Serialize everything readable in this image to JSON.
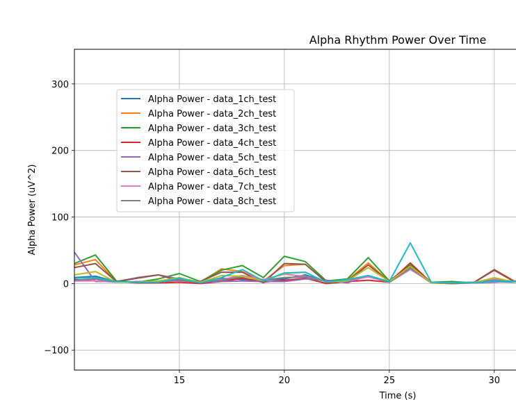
{
  "chart_data": {
    "type": "line",
    "title": "Alpha Rhythm Power Over Time",
    "xlabel": "Time (s)",
    "ylabel": "Alpha Power (uV^2)",
    "xlim": [
      10,
      31.2
    ],
    "ylim": [
      -130,
      352
    ],
    "xticks": [
      15,
      20,
      25,
      30
    ],
    "yticks": [
      -100,
      0,
      100,
      200,
      300
    ],
    "grid": true,
    "legend_position": "upper-left",
    "x": [
      10,
      11,
      12,
      13,
      14,
      15,
      16,
      17,
      18,
      19,
      20,
      21,
      22,
      23,
      24,
      25,
      26,
      27,
      28,
      29,
      30,
      31,
      32
    ],
    "series": [
      {
        "name": "Alpha Power - data_1ch_test",
        "color": "#1f77b4",
        "values": [
          9,
          11,
          3,
          2,
          4,
          6,
          3,
          8,
          6,
          5,
          7,
          13,
          3,
          4,
          11,
          2,
          25,
          2,
          2,
          1,
          3,
          2,
          2
        ]
      },
      {
        "name": "Alpha Power - data_2ch_test",
        "color": "#ff7f0e",
        "values": [
          28,
          36,
          3,
          1,
          3,
          8,
          2,
          22,
          18,
          4,
          27,
          29,
          2,
          5,
          31,
          3,
          28,
          1,
          1,
          1,
          21,
          3,
          3
        ]
      },
      {
        "name": "Alpha Power - data_3ch_test",
        "color": "#2ca02c",
        "values": [
          30,
          43,
          4,
          2,
          7,
          15,
          3,
          20,
          27,
          9,
          41,
          33,
          4,
          7,
          39,
          4,
          28,
          2,
          3,
          1,
          6,
          3,
          3
        ]
      },
      {
        "name": "Alpha Power - data_4ch_test",
        "color": "#d62728",
        "values": [
          6,
          4,
          3,
          1,
          1,
          2,
          0,
          3,
          8,
          2,
          5,
          8,
          0,
          3,
          5,
          2,
          31,
          1,
          0,
          1,
          20,
          2,
          2
        ]
      },
      {
        "name": "Alpha Power - data_5ch_test",
        "color": "#9467bd",
        "values": [
          47,
          3,
          3,
          9,
          13,
          7,
          2,
          3,
          4,
          3,
          3,
          7,
          5,
          1,
          12,
          2,
          22,
          2,
          1,
          1,
          2,
          4,
          4
        ]
      },
      {
        "name": "Alpha Power - data_6ch_test",
        "color": "#8c564b",
        "values": [
          24,
          30,
          3,
          8,
          13,
          4,
          3,
          17,
          17,
          1,
          30,
          29,
          2,
          4,
          28,
          3,
          22,
          1,
          0,
          1,
          21,
          2,
          2
        ]
      },
      {
        "name": "Alpha Power - data_7ch_test",
        "color": "#e377c2",
        "values": [
          4,
          4,
          2,
          2,
          3,
          4,
          2,
          6,
          12,
          6,
          14,
          11,
          3,
          4,
          10,
          2,
          21,
          2,
          1,
          2,
          7,
          3,
          3
        ]
      },
      {
        "name": "Alpha Power - data_8ch_test",
        "color": "#7f7f7f",
        "values": [
          5,
          7,
          2,
          3,
          3,
          5,
          2,
          5,
          10,
          5,
          9,
          10,
          3,
          5,
          12,
          2,
          23,
          2,
          1,
          2,
          5,
          3,
          3
        ]
      },
      {
        "name": "",
        "color": "#bcbd22",
        "values": [
          13,
          18,
          2,
          2,
          4,
          9,
          2,
          12,
          11,
          4,
          15,
          17,
          2,
          4,
          24,
          3,
          26,
          1,
          1,
          1,
          9,
          2,
          2
        ]
      },
      {
        "name": "",
        "color": "#17becf",
        "values": [
          8,
          9,
          3,
          2,
          2,
          8,
          1,
          9,
          21,
          4,
          16,
          17,
          2,
          6,
          12,
          3,
          61,
          2,
          1,
          1,
          4,
          3,
          3
        ]
      }
    ]
  }
}
